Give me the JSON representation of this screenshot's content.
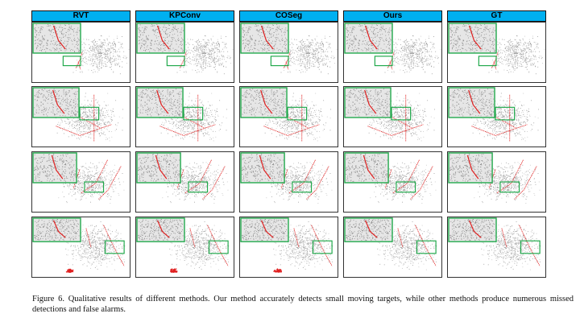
{
  "figure": {
    "columns": [
      "RVT",
      "KPConv",
      "COSeg",
      "Ours",
      "GT"
    ],
    "rows": 4,
    "colors": {
      "header": "#00b0f0",
      "points": "#9a9a9a",
      "target": "#e02020",
      "box": "#1fa84a"
    }
  },
  "caption": {
    "label": "Figure 6.",
    "text": "Qualitative results of different methods. Our method accurately detects small moving targets, while other methods produce numerous missed detections and false alarms."
  }
}
